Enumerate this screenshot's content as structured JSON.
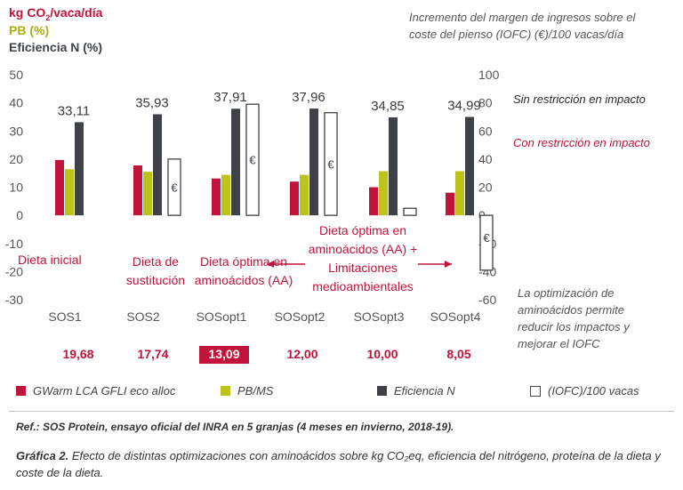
{
  "header": {
    "line1_main": "kg CO",
    "line1_sub": "2",
    "line1_tail": "/vaca/día",
    "line2": "PB (%)",
    "line3": "Eficiencia N (%)",
    "right_axis_title_l1": "Incremento del margen de ingresos sobre el",
    "right_axis_title_l2": "coste del pienso (IOFC) (€)/100 vacas/día"
  },
  "side_notes": {
    "sin_restriccion": "Sin restricción en impacto",
    "con_restriccion": "Con restricción en impacto",
    "optimization_l1": "La optimización de",
    "optimization_l2": "aminoácidos permite",
    "optimization_l3": "reducir los impactos y",
    "optimization_l4": "mejorar el IOFC"
  },
  "annotations": {
    "dieta_inicial": "Dieta inicial",
    "dieta_sust_l1": "Dieta de",
    "dieta_sust_l2": "sustitución",
    "dieta_opt_l1": "Dieta óptima en",
    "dieta_opt_l2": "aminoácidos (AA)",
    "dieta_lim_l1": "Dieta óptima en",
    "dieta_lim_l2": "aminoácidos (AA) +",
    "dieta_lim_l3": "Limitaciones",
    "dieta_lim_l4": "medioambientales",
    "euro": "€"
  },
  "chart_data": {
    "type": "bar",
    "categories": [
      "SOS1",
      "SOS2",
      "SOSopt1",
      "SOSopt2",
      "SOSopt3",
      "SOSopt4"
    ],
    "left_axis": {
      "ylim": [
        -30,
        50
      ],
      "ticks": [
        50,
        40,
        30,
        20,
        10,
        0,
        -10,
        -20,
        -30
      ]
    },
    "right_axis": {
      "ylim": [
        -60,
        100
      ],
      "ticks": [
        100,
        80,
        60,
        40,
        20,
        0,
        -20,
        -40,
        -60
      ]
    },
    "series": [
      {
        "name": "GWarm LCA GFLI eco alloc",
        "color": "#c0143c",
        "axis": "left",
        "values": [
          19.68,
          17.74,
          13.09,
          12.0,
          10.0,
          8.05
        ]
      },
      {
        "name": "PB/MS",
        "color": "#bcc41a",
        "axis": "left",
        "values": [
          16.4,
          15.5,
          14.4,
          14.4,
          15.7,
          15.7
        ]
      },
      {
        "name": "Eficiencia N",
        "color": "#3e4247",
        "axis": "left",
        "values": [
          33.11,
          35.93,
          37.91,
          37.96,
          34.85,
          34.99
        ]
      },
      {
        "name": "(IOFC)/100 vacas",
        "color": "#ffffff",
        "axis": "right",
        "values": [
          null,
          40,
          79,
          73,
          5,
          -39
        ]
      }
    ],
    "efficiency_labels": [
      "33,11",
      "35,93",
      "37,91",
      "37,96",
      "34,85",
      "34,99"
    ],
    "gwarm_labels": [
      "19,68",
      "17,74",
      "13,09",
      "12,00",
      "10,00",
      "8,05"
    ],
    "highlighted_index": 2,
    "grid": false
  },
  "legend": [
    {
      "label": "GWarm LCA GFLI eco alloc",
      "color": "#c0143c",
      "type": "fill"
    },
    {
      "label": "PB/MS",
      "color": "#bcc41a",
      "type": "fill"
    },
    {
      "label": "Eficiencia N",
      "color": "#3e4247",
      "type": "fill"
    },
    {
      "label": "(IOFC)/100 vacas",
      "color": "#ffffff",
      "type": "outline"
    }
  ],
  "footer": {
    "ref": "Ref.: SOS Protein, ensayo oficial del INRA en 5 granjas (4 meses en invierno, 2018-19).",
    "caption_bold": "Gráfica 2.",
    "caption_text": " Efecto de distintas optimizaciones con aminoácidos sobre kg CO₂eq, eficiencia del nitrógeno, proteína de la dieta y coste de la dieta."
  }
}
